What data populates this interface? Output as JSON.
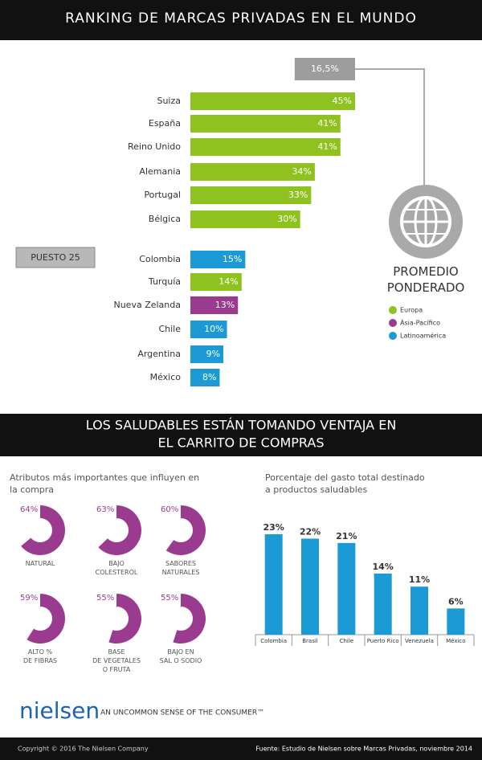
{
  "chart_data": [
    {
      "type": "bar",
      "orientation": "horizontal",
      "title": "RANKING DE MARCAS PRIVADAS EN EL MUNDO",
      "categories": [
        "Suiza",
        "España",
        "Reino Unido",
        "Alemania",
        "Portugal",
        "Bélgica",
        "Colombia",
        "Turquía",
        "Nueva Zelanda",
        "Chile",
        "Argentina",
        "México"
      ],
      "values": [
        45,
        41,
        41,
        34,
        33,
        30,
        15,
        14,
        13,
        10,
        9,
        8
      ],
      "value_labels": [
        "45%",
        "41%",
        "41%",
        "34%",
        "33%",
        "30%",
        "15%",
        "14%",
        "13%",
        "10%",
        "9%",
        "8%"
      ],
      "colors": [
        "#8dc21f",
        "#8dc21f",
        "#8dc21f",
        "#8dc21f",
        "#8dc21f",
        "#8dc21f",
        "#1b9ad6",
        "#8dc21f",
        "#9b3b8f",
        "#1b9ad6",
        "#1b9ad6",
        "#1b9ad6"
      ],
      "average": {
        "label": "PROMEDIO PONDERADO",
        "value": 16.5,
        "value_label": "16,5%"
      },
      "rank_label": "PUESTO 25",
      "legend": [
        {
          "name": "Europa",
          "color": "#8dc21f"
        },
        {
          "name": "Ásia-Pacífico",
          "color": "#9b3b8f"
        },
        {
          "name": "Latinoamérica",
          "color": "#1b9ad6"
        }
      ],
      "legend_position": "right"
    },
    {
      "type": "pie",
      "title": "Atributos más importantes que influyen en la compra",
      "categories": [
        "NATURAL",
        "BAJO\nCOLESTEROL",
        "SABORES\nNATURALES",
        "ALTO %\nDE FIBRAS",
        "BASE\nDE VEGETALES\nO FRUTA",
        "BAJO EN\nSAL O SODIO"
      ],
      "values": [
        64,
        63,
        60,
        59,
        55,
        55
      ],
      "value_labels": [
        "64%",
        "63%",
        "60%",
        "59%",
        "55%",
        "55%"
      ],
      "color": "#9b3b8f"
    },
    {
      "type": "bar",
      "orientation": "vertical",
      "title": "Porcentaje del gasto total destinado a productos saludables",
      "categories": [
        "Colombia",
        "Brasil",
        "Chile",
        "Puerto Rico",
        "Venezuela",
        "México"
      ],
      "values": [
        23,
        22,
        21,
        14,
        11,
        6
      ],
      "value_labels": [
        "23%",
        "22%",
        "21%",
        "14%",
        "11%",
        "6%"
      ],
      "color": "#1b9ad6"
    }
  ],
  "section_header": {
    "lines": [
      "LOS SALUDABLES ESTÁN TOMANDO VENTAJA EN",
      "EL CARRITO DE COMPRAS"
    ]
  },
  "footer": {
    "brand": "nielsen",
    "tagline": "AN UNCOMMON SENSE OF THE CONSUMER™",
    "copyright": "Copyright © 2016 The Nielsen Company",
    "source": "Fuente: Estudio de Nielsen sobre Marcas Privadas, noviembre 2014"
  }
}
